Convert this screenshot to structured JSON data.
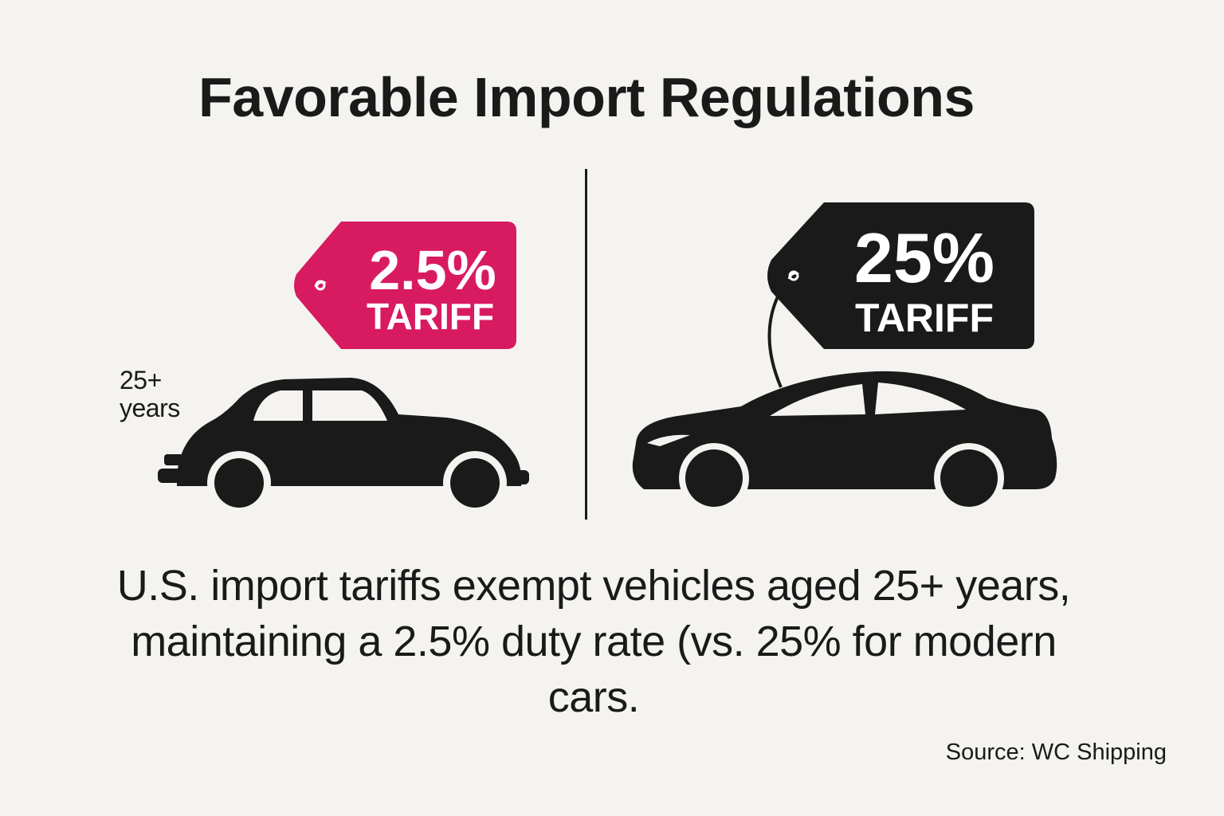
{
  "title": "Favorable Import Regulations",
  "left_panel": {
    "tag_value": "2.5%",
    "tag_label": "TARIFF",
    "age_line1": "25+",
    "age_line2": "years",
    "icon": "vintage-car-icon",
    "tag_color": "#d81b60"
  },
  "right_panel": {
    "tag_value": "25%",
    "tag_label": "TARIFF",
    "icon": "modern-sedan-icon",
    "tag_color": "#1a1a1a"
  },
  "caption": "U.S. import tariffs exempt vehicles aged 25+ years, maintaining a 2.5% duty rate (vs. 25% for modern cars.",
  "source": "Source: WC Shipping"
}
